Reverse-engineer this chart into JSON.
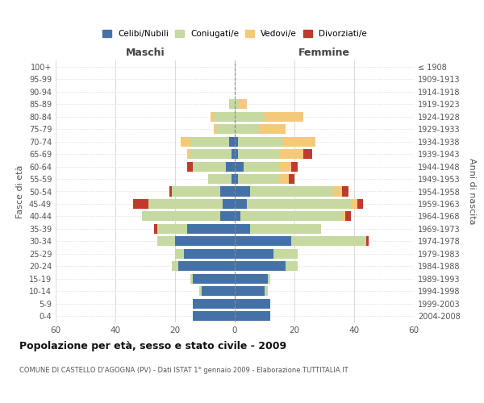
{
  "age_groups": [
    "0-4",
    "5-9",
    "10-14",
    "15-19",
    "20-24",
    "25-29",
    "30-34",
    "35-39",
    "40-44",
    "45-49",
    "50-54",
    "55-59",
    "60-64",
    "65-69",
    "70-74",
    "75-79",
    "80-84",
    "85-89",
    "90-94",
    "95-99",
    "100+"
  ],
  "birth_years": [
    "2004-2008",
    "1999-2003",
    "1994-1998",
    "1989-1993",
    "1984-1988",
    "1979-1983",
    "1974-1978",
    "1969-1973",
    "1964-1968",
    "1959-1963",
    "1954-1958",
    "1949-1953",
    "1944-1948",
    "1939-1943",
    "1934-1938",
    "1929-1933",
    "1924-1928",
    "1919-1923",
    "1914-1918",
    "1909-1913",
    "≤ 1908"
  ],
  "male": {
    "celibi": [
      14,
      14,
      11,
      14,
      19,
      17,
      20,
      16,
      5,
      4,
      5,
      1,
      3,
      1,
      2,
      0,
      0,
      0,
      0,
      0,
      0
    ],
    "coniugati": [
      0,
      0,
      1,
      1,
      2,
      3,
      6,
      10,
      26,
      25,
      16,
      8,
      11,
      14,
      13,
      6,
      7,
      2,
      0,
      0,
      0
    ],
    "vedovi": [
      0,
      0,
      0,
      0,
      0,
      0,
      0,
      0,
      0,
      0,
      0,
      0,
      0,
      1,
      3,
      1,
      1,
      0,
      0,
      0,
      0
    ],
    "divorziati": [
      0,
      0,
      0,
      0,
      0,
      0,
      0,
      1,
      0,
      5,
      1,
      0,
      2,
      0,
      0,
      0,
      0,
      0,
      0,
      0,
      0
    ]
  },
  "female": {
    "nubili": [
      12,
      12,
      10,
      11,
      17,
      13,
      19,
      5,
      2,
      4,
      5,
      1,
      3,
      1,
      1,
      0,
      0,
      0,
      0,
      0,
      0
    ],
    "coniugate": [
      0,
      0,
      1,
      1,
      4,
      8,
      25,
      24,
      34,
      35,
      28,
      14,
      12,
      14,
      15,
      8,
      10,
      1,
      0,
      0,
      0
    ],
    "vedove": [
      0,
      0,
      0,
      0,
      0,
      0,
      0,
      0,
      1,
      2,
      3,
      3,
      4,
      8,
      11,
      9,
      13,
      3,
      0,
      0,
      0
    ],
    "divorziate": [
      0,
      0,
      0,
      0,
      0,
      0,
      1,
      0,
      2,
      2,
      2,
      2,
      2,
      3,
      0,
      0,
      0,
      0,
      0,
      0,
      0
    ]
  },
  "colors": {
    "celibi": "#4472a8",
    "coniugati": "#c5d9a0",
    "vedovi": "#f5c97a",
    "divorziati": "#c0392b"
  },
  "xlim": 60,
  "title": "Popolazione per età, sesso e stato civile - 2009",
  "subtitle": "COMUNE DI CASTELLO D'AGOGNA (PV) - Dati ISTAT 1° gennaio 2009 - Elaborazione TUTTITALIA.IT",
  "ylabel_left": "Fasce di età",
  "ylabel_right": "Anni di nascita",
  "legend_labels": [
    "Celibi/Nubili",
    "Coniugati/e",
    "Vedovi/e",
    "Divorziati/e"
  ]
}
